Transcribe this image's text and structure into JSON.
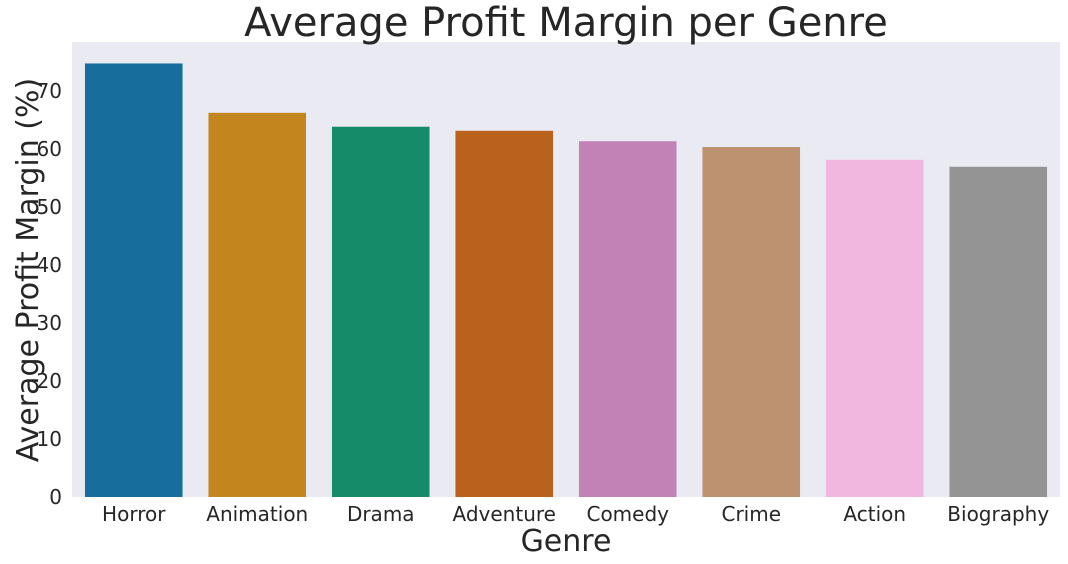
{
  "chart_data": {
    "type": "bar",
    "title": "Average Profit Margin per Genre",
    "xlabel": "Genre",
    "ylabel": "Average Profit Margin (%)",
    "categories": [
      "Horror",
      "Animation",
      "Drama",
      "Adventure",
      "Comedy",
      "Crime",
      "Action",
      "Biography"
    ],
    "values": [
      74.7,
      66.2,
      63.8,
      63.1,
      61.3,
      60.3,
      58.1,
      56.9
    ],
    "colors": [
      "#176d9c",
      "#c3861e",
      "#158b6a",
      "#ba611b",
      "#c282b5",
      "#bc9270",
      "#f1b7df",
      "#949494"
    ],
    "yticks": [
      0,
      10,
      20,
      30,
      40,
      50,
      60,
      70
    ],
    "ylim": [
      0,
      78.4
    ],
    "grid": false,
    "background": "#eaeaf2"
  }
}
